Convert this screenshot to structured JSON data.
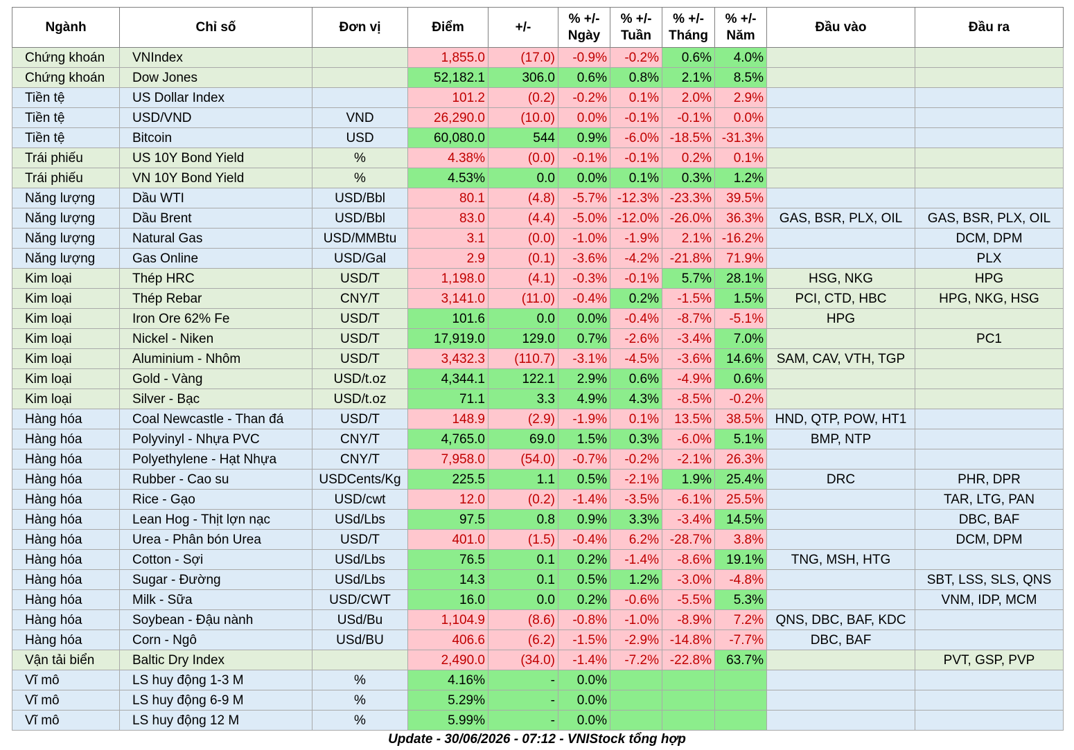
{
  "headers": [
    "Ngành",
    "Chỉ số",
    "Đơn vị",
    "Điểm",
    "+/-",
    [
      "% +/-",
      "Ngày"
    ],
    [
      "% +/-",
      "Tuần"
    ],
    [
      "% +/-",
      "Tháng"
    ],
    [
      "% +/-",
      "Năm"
    ],
    "Đầu vào",
    "Đầu ra"
  ],
  "colors": {
    "up": "#8ced8c",
    "down": "#ffc7ce",
    "down_text": "#c00000",
    "row_green": "#e2efda",
    "row_blue": "#ddebf7"
  },
  "rows": [
    {
      "sector": "Chứng khoán",
      "index": "VNIndex",
      "unit": "",
      "point": "1,855.0",
      "change": "(17.0)",
      "day": "-0.9%",
      "week": "-0.2%",
      "month": "0.6%",
      "year": "4.0%",
      "in": "",
      "out": "",
      "bg": "green",
      "s": [
        "d",
        "d",
        "d",
        "d",
        "u",
        "u"
      ]
    },
    {
      "sector": "Chứng khoán",
      "index": "Dow Jones",
      "unit": "",
      "point": "52,182.1",
      "change": "306.0",
      "day": "0.6%",
      "week": "0.8%",
      "month": "2.1%",
      "year": "8.5%",
      "in": "",
      "out": "",
      "bg": "green",
      "s": [
        "u",
        "u",
        "u",
        "u",
        "u",
        "u"
      ]
    },
    {
      "sector": "Tiền tệ",
      "index": "US Dollar Index",
      "unit": "",
      "point": "101.2",
      "change": "(0.2)",
      "day": "-0.2%",
      "week": "0.1%",
      "month": "2.0%",
      "year": "2.9%",
      "in": "",
      "out": "",
      "bg": "blue",
      "s": [
        "d",
        "d",
        "d",
        "d",
        "d",
        "d"
      ]
    },
    {
      "sector": "Tiền tệ",
      "index": "USD/VND",
      "unit": "VND",
      "point": "26,290.0",
      "change": "(10.0)",
      "day": "0.0%",
      "week": "-0.1%",
      "month": "-0.1%",
      "year": "0.0%",
      "in": "",
      "out": "",
      "bg": "blue",
      "s": [
        "d",
        "d",
        "d",
        "d",
        "d",
        "d"
      ]
    },
    {
      "sector": "Tiền tệ",
      "index": "Bitcoin",
      "unit": "USD",
      "point": "60,080.0",
      "change": "544",
      "day": "0.9%",
      "week": "-6.0%",
      "month": "-18.5%",
      "year": "-31.3%",
      "in": "",
      "out": "",
      "bg": "blue",
      "s": [
        "u",
        "u",
        "u",
        "d",
        "d",
        "d"
      ]
    },
    {
      "sector": "Trái phiếu",
      "index": "US 10Y Bond Yield",
      "unit": "%",
      "point": "4.38%",
      "change": "(0.0)",
      "day": "-0.1%",
      "week": "-0.1%",
      "month": "0.2%",
      "year": "0.1%",
      "in": "",
      "out": "",
      "bg": "green",
      "s": [
        "d",
        "d",
        "d",
        "d",
        "d",
        "d"
      ]
    },
    {
      "sector": "Trái phiếu",
      "index": "VN 10Y Bond Yield",
      "unit": "%",
      "point": "4.53%",
      "change": "0.0",
      "day": "0.0%",
      "week": "0.1%",
      "month": "0.3%",
      "year": "1.2%",
      "in": "",
      "out": "",
      "bg": "green",
      "s": [
        "u",
        "u",
        "u",
        "u",
        "u",
        "u"
      ]
    },
    {
      "sector": "Năng lượng",
      "index": "Dầu WTI",
      "unit": "USD/Bbl",
      "point": "80.1",
      "change": "(4.8)",
      "day": "-5.7%",
      "week": "-12.3%",
      "month": "-23.3%",
      "year": "39.5%",
      "in": "",
      "out": "",
      "bg": "blue",
      "s": [
        "d",
        "d",
        "d",
        "d",
        "d",
        "d"
      ]
    },
    {
      "sector": "Năng lượng",
      "index": "Dầu Brent",
      "unit": "USD/Bbl",
      "point": "83.0",
      "change": "(4.4)",
      "day": "-5.0%",
      "week": "-12.0%",
      "month": "-26.0%",
      "year": "36.3%",
      "in": "GAS, BSR, PLX, OIL",
      "out": "GAS, BSR, PLX, OIL",
      "bg": "blue",
      "s": [
        "d",
        "d",
        "d",
        "d",
        "d",
        "d"
      ]
    },
    {
      "sector": "Năng lượng",
      "index": "Natural Gas",
      "unit": "USD/MMBtu",
      "point": "3.1",
      "change": "(0.0)",
      "day": "-1.0%",
      "week": "-1.9%",
      "month": "2.1%",
      "year": "-16.2%",
      "in": "",
      "out": "DCM, DPM",
      "bg": "blue",
      "s": [
        "d",
        "d",
        "d",
        "d",
        "d",
        "d"
      ]
    },
    {
      "sector": "Năng lượng",
      "index": "Gas Online",
      "unit": "USD/Gal",
      "point": "2.9",
      "change": "(0.1)",
      "day": "-3.6%",
      "week": "-4.2%",
      "month": "-21.8%",
      "year": "71.9%",
      "in": "",
      "out": "PLX",
      "bg": "blue",
      "s": [
        "d",
        "d",
        "d",
        "d",
        "d",
        "d"
      ]
    },
    {
      "sector": "Kim loại",
      "index": "Thép HRC",
      "unit": "USD/T",
      "point": "1,198.0",
      "change": "(4.1)",
      "day": "-0.3%",
      "week": "-0.1%",
      "month": "5.7%",
      "year": "28.1%",
      "in": "HSG, NKG",
      "out": "HPG",
      "bg": "green",
      "s": [
        "d",
        "d",
        "d",
        "d",
        "u",
        "u"
      ]
    },
    {
      "sector": "Kim loại",
      "index": "Thép Rebar",
      "unit": "CNY/T",
      "point": "3,141.0",
      "change": "(11.0)",
      "day": "-0.4%",
      "week": "0.2%",
      "month": "-1.5%",
      "year": "1.5%",
      "in": "PCI, CTD, HBC",
      "out": "HPG, NKG, HSG",
      "bg": "green",
      "s": [
        "d",
        "d",
        "d",
        "u",
        "d",
        "u"
      ]
    },
    {
      "sector": "Kim loại",
      "index": "Iron Ore 62% Fe",
      "unit": "USD/T",
      "point": "101.6",
      "change": "0.0",
      "day": "0.0%",
      "week": "-0.4%",
      "month": "-8.7%",
      "year": "-5.1%",
      "in": "HPG",
      "out": "",
      "bg": "green",
      "s": [
        "u",
        "u",
        "u",
        "d",
        "d",
        "d"
      ]
    },
    {
      "sector": "Kim loại",
      "index": "Nickel - Niken",
      "unit": "USD/T",
      "point": "17,919.0",
      "change": "129.0",
      "day": "0.7%",
      "week": "-2.6%",
      "month": "-3.4%",
      "year": "7.0%",
      "in": "",
      "out": "PC1",
      "bg": "green",
      "s": [
        "u",
        "u",
        "u",
        "d",
        "d",
        "u"
      ]
    },
    {
      "sector": "Kim loại",
      "index": "Aluminium - Nhôm",
      "unit": "USD/T",
      "point": "3,432.3",
      "change": "(110.7)",
      "day": "-3.1%",
      "week": "-4.5%",
      "month": "-3.6%",
      "year": "14.6%",
      "in": "SAM, CAV, VTH, TGP",
      "out": "",
      "bg": "green",
      "s": [
        "d",
        "d",
        "d",
        "d",
        "d",
        "u"
      ]
    },
    {
      "sector": "Kim loại",
      "index": "Gold - Vàng",
      "unit": "USD/t.oz",
      "point": "4,344.1",
      "change": "122.1",
      "day": "2.9%",
      "week": "0.6%",
      "month": "-4.9%",
      "year": "0.6%",
      "in": "",
      "out": "",
      "bg": "green",
      "s": [
        "u",
        "u",
        "u",
        "u",
        "d",
        "u"
      ]
    },
    {
      "sector": "Kim loại",
      "index": "Silver - Bạc",
      "unit": "USD/t.oz",
      "point": "71.1",
      "change": "3.3",
      "day": "4.9%",
      "week": "4.3%",
      "month": "-8.5%",
      "year": "-0.2%",
      "in": "",
      "out": "",
      "bg": "green",
      "s": [
        "u",
        "u",
        "u",
        "u",
        "d",
        "d"
      ]
    },
    {
      "sector": "Hàng hóa",
      "index": "Coal Newcastle - Than đá",
      "unit": "USD/T",
      "point": "148.9",
      "change": "(2.9)",
      "day": "-1.9%",
      "week": "0.1%",
      "month": "13.5%",
      "year": "38.5%",
      "in": "HND, QTP, POW, HT1",
      "out": "",
      "bg": "blue",
      "s": [
        "d",
        "d",
        "d",
        "d",
        "d",
        "d"
      ]
    },
    {
      "sector": "Hàng hóa",
      "index": "Polyvinyl - Nhựa PVC",
      "unit": "CNY/T",
      "point": "4,765.0",
      "change": "69.0",
      "day": "1.5%",
      "week": "0.3%",
      "month": "-6.0%",
      "year": "5.1%",
      "in": "BMP, NTP",
      "out": "",
      "bg": "blue",
      "s": [
        "u",
        "u",
        "u",
        "u",
        "d",
        "u"
      ]
    },
    {
      "sector": "Hàng hóa",
      "index": "Polyethylene - Hạt Nhựa",
      "unit": "CNY/T",
      "point": "7,958.0",
      "change": "(54.0)",
      "day": "-0.7%",
      "week": "-0.2%",
      "month": "-2.1%",
      "year": "26.3%",
      "in": "",
      "out": "",
      "bg": "blue",
      "s": [
        "d",
        "d",
        "d",
        "d",
        "d",
        "d"
      ]
    },
    {
      "sector": "Hàng hóa",
      "index": "Rubber - Cao su",
      "unit": "USDCents/Kg",
      "point": "225.5",
      "change": "1.1",
      "day": "0.5%",
      "week": "-2.1%",
      "month": "1.9%",
      "year": "25.4%",
      "in": "DRC",
      "out": "PHR, DPR",
      "bg": "blue",
      "s": [
        "u",
        "u",
        "u",
        "d",
        "u",
        "u"
      ]
    },
    {
      "sector": "Hàng hóa",
      "index": "Rice - Gạo",
      "unit": "USD/cwt",
      "point": "12.0",
      "change": "(0.2)",
      "day": "-1.4%",
      "week": "-3.5%",
      "month": "-6.1%",
      "year": "25.5%",
      "in": "",
      "out": "TAR, LTG, PAN",
      "bg": "blue",
      "s": [
        "d",
        "d",
        "d",
        "d",
        "d",
        "d"
      ]
    },
    {
      "sector": "Hàng hóa",
      "index": "Lean Hog - Thịt lợn nạc",
      "unit": "USd/Lbs",
      "point": "97.5",
      "change": "0.8",
      "day": "0.9%",
      "week": "3.3%",
      "month": "-3.4%",
      "year": "14.5%",
      "in": "",
      "out": "DBC, BAF",
      "bg": "blue",
      "s": [
        "u",
        "u",
        "u",
        "u",
        "d",
        "u"
      ]
    },
    {
      "sector": "Hàng hóa",
      "index": "Urea - Phân bón Urea",
      "unit": "USD/T",
      "point": "401.0",
      "change": "(1.5)",
      "day": "-0.4%",
      "week": "6.2%",
      "month": "-28.7%",
      "year": "3.8%",
      "in": "",
      "out": "DCM, DPM",
      "bg": "blue",
      "s": [
        "d",
        "d",
        "d",
        "d",
        "d",
        "d"
      ]
    },
    {
      "sector": "Hàng hóa",
      "index": "Cotton - Sợi",
      "unit": "USd/Lbs",
      "point": "76.5",
      "change": "0.1",
      "day": "0.2%",
      "week": "-1.4%",
      "month": "-8.6%",
      "year": "19.1%",
      "in": "TNG, MSH, HTG",
      "out": "",
      "bg": "blue",
      "s": [
        "u",
        "u",
        "u",
        "d",
        "d",
        "u"
      ]
    },
    {
      "sector": "Hàng hóa",
      "index": "Sugar - Đường",
      "unit": "USd/Lbs",
      "point": "14.3",
      "change": "0.1",
      "day": "0.5%",
      "week": "1.2%",
      "month": "-3.0%",
      "year": "-4.8%",
      "in": "",
      "out": "SBT, LSS, SLS, QNS",
      "bg": "blue",
      "s": [
        "u",
        "u",
        "u",
        "u",
        "d",
        "d"
      ]
    },
    {
      "sector": "Hàng hóa",
      "index": "Milk - Sữa",
      "unit": "USD/CWT",
      "point": "16.0",
      "change": "0.0",
      "day": "0.2%",
      "week": "-0.6%",
      "month": "-5.5%",
      "year": "5.3%",
      "in": "",
      "out": "VNM, IDP, MCM",
      "bg": "blue",
      "s": [
        "u",
        "u",
        "u",
        "d",
        "d",
        "u"
      ]
    },
    {
      "sector": "Hàng hóa",
      "index": "Soybean - Đậu nành",
      "unit": "USd/Bu",
      "point": "1,104.9",
      "change": "(8.6)",
      "day": "-0.8%",
      "week": "-1.0%",
      "month": "-8.9%",
      "year": "7.2%",
      "in": "QNS, DBC, BAF, KDC",
      "out": "",
      "bg": "blue",
      "s": [
        "d",
        "d",
        "d",
        "d",
        "d",
        "d"
      ]
    },
    {
      "sector": "Hàng hóa",
      "index": "Corn - Ngô",
      "unit": "USd/BU",
      "point": "406.6",
      "change": "(6.2)",
      "day": "-1.5%",
      "week": "-2.9%",
      "month": "-14.8%",
      "year": "-7.7%",
      "in": "DBC, BAF",
      "out": "",
      "bg": "blue",
      "s": [
        "d",
        "d",
        "d",
        "d",
        "d",
        "d"
      ]
    },
    {
      "sector": "Vận tải biển",
      "index": "Baltic Dry Index",
      "unit": "",
      "point": "2,490.0",
      "change": "(34.0)",
      "day": "-1.4%",
      "week": "-7.2%",
      "month": "-22.8%",
      "year": "63.7%",
      "in": "",
      "out": "PVT, GSP, PVP",
      "bg": "green",
      "s": [
        "d",
        "d",
        "d",
        "d",
        "d",
        "u"
      ]
    },
    {
      "sector": "Vĩ mô",
      "index": "LS huy động 1-3 M",
      "unit": "%",
      "point": "4.16%",
      "change": "-",
      "day": "0.0%",
      "week": "",
      "month": "",
      "year": "",
      "in": "",
      "out": "",
      "bg": "blue",
      "s": [
        "u",
        "u",
        "u",
        "u",
        "u",
        "u"
      ]
    },
    {
      "sector": "Vĩ mô",
      "index": "LS huy động 6-9 M",
      "unit": "%",
      "point": "5.29%",
      "change": "-",
      "day": "0.0%",
      "week": "",
      "month": "",
      "year": "",
      "in": "",
      "out": "",
      "bg": "blue",
      "s": [
        "u",
        "u",
        "u",
        "u",
        "u",
        "u"
      ]
    },
    {
      "sector": "Vĩ mô",
      "index": "LS huy động 12 M",
      "unit": "%",
      "point": "5.99%",
      "change": "-",
      "day": "0.0%",
      "week": "",
      "month": "",
      "year": "",
      "in": "",
      "out": "",
      "bg": "blue",
      "s": [
        "u",
        "u",
        "u",
        "u",
        "u",
        "u"
      ]
    }
  ],
  "footer": "Update - 30/06/2026 - 07:12 - VNIStock tổng hợp"
}
